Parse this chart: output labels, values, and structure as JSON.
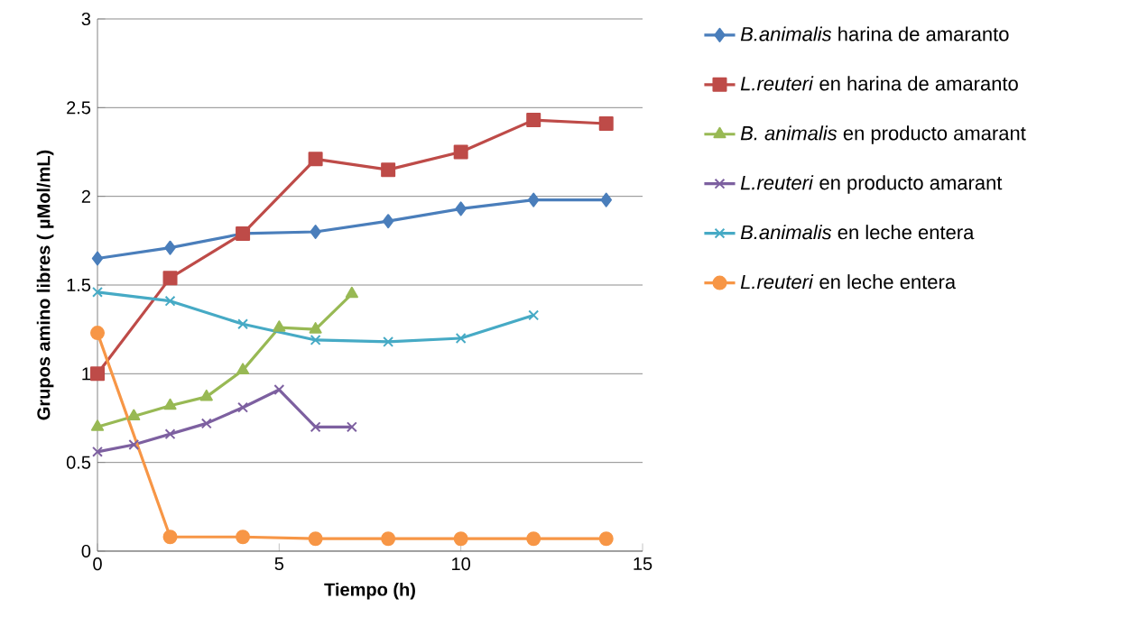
{
  "chart_data": {
    "type": "line",
    "xlabel": "Tiempo (h)",
    "ylabel": "Grupos amino libres ( µMol/mL)",
    "xlim": [
      0,
      15
    ],
    "ylim": [
      0,
      3
    ],
    "xticks": [
      0,
      5,
      10,
      15
    ],
    "yticks": [
      0,
      0.5,
      1,
      1.5,
      2,
      2.5,
      3
    ],
    "grid": "y",
    "legend": "right",
    "series": [
      {
        "name": "*B.animalis* harina de amaranto",
        "color": "#4a7ebb",
        "marker": "diamond",
        "x": [
          0,
          2,
          4,
          6,
          8,
          10,
          12,
          14
        ],
        "values": [
          1.65,
          1.71,
          1.79,
          1.8,
          1.86,
          1.93,
          1.98,
          1.98
        ]
      },
      {
        "name": "*L.reuteri* en harina de amaranto",
        "color": "#be4b48",
        "marker": "square",
        "x": [
          0,
          2,
          4,
          6,
          8,
          10,
          12,
          14
        ],
        "values": [
          1.0,
          1.54,
          1.79,
          2.21,
          2.15,
          2.25,
          2.43,
          2.41
        ]
      },
      {
        "name": "*B. animalis* en producto amarant",
        "color": "#98b954",
        "marker": "triangle",
        "x": [
          0,
          1,
          2,
          3,
          4,
          5,
          6,
          7
        ],
        "values": [
          0.7,
          0.76,
          0.82,
          0.87,
          1.02,
          1.26,
          1.25,
          1.45
        ]
      },
      {
        "name": "*L.reuteri* en producto amarant",
        "color": "#7d60a0",
        "marker": "cross",
        "x": [
          0,
          1,
          2,
          3,
          4,
          5,
          6,
          7
        ],
        "values": [
          0.56,
          0.6,
          0.66,
          0.72,
          0.81,
          0.91,
          0.7,
          0.7
        ]
      },
      {
        "name": "*B.animalis* en leche entera",
        "color": "#46aac5",
        "marker": "cross",
        "x": [
          0,
          2,
          4,
          6,
          8,
          10,
          12
        ],
        "values": [
          1.46,
          1.41,
          1.28,
          1.19,
          1.18,
          1.2,
          1.33
        ]
      },
      {
        "name": "*L.reuteri* en leche entera",
        "color": "#f79646",
        "marker": "circle",
        "x": [
          0,
          2,
          4,
          6,
          8,
          10,
          12,
          14
        ],
        "values": [
          1.23,
          0.08,
          0.08,
          0.07,
          0.07,
          0.07,
          0.07,
          0.07
        ]
      }
    ]
  }
}
